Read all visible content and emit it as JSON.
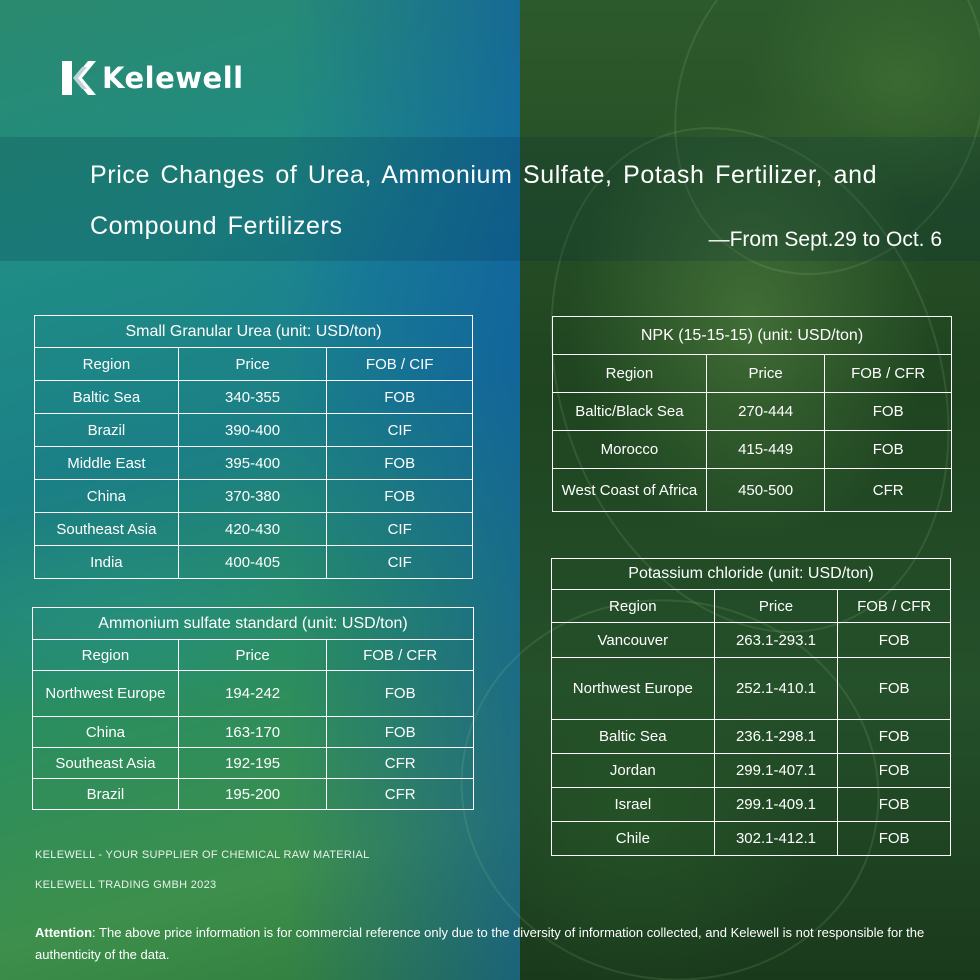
{
  "brand": {
    "name": "Kelewell"
  },
  "title": "Price Changes of Urea, Ammonium Sulfate, Potash Fertilizer, and Compound Fertilizers",
  "date_range": "—From Sept.29 to Oct. 6",
  "tables": {
    "urea": {
      "caption": "Small Granular Urea (unit: USD/ton)",
      "headers": [
        "Region",
        "Price",
        "FOB / CIF"
      ],
      "rows": [
        [
          "Baltic Sea",
          "340-355",
          "FOB"
        ],
        [
          "Brazil",
          "390-400",
          "CIF"
        ],
        [
          "Middle East",
          "395-400",
          "FOB"
        ],
        [
          "China",
          "370-380",
          "FOB"
        ],
        [
          "Southeast Asia",
          "420-430",
          "CIF"
        ],
        [
          "India",
          "400-405",
          "CIF"
        ]
      ]
    },
    "ammonium": {
      "caption": "Ammonium sulfate standard (unit: USD/ton)",
      "headers": [
        "Region",
        "Price",
        "FOB / CFR"
      ],
      "rows": [
        [
          "Northwest Europe",
          "194-242",
          "FOB"
        ],
        [
          "China",
          "163-170",
          "FOB"
        ],
        [
          "Southeast Asia",
          "192-195",
          "CFR"
        ],
        [
          "Brazil",
          "195-200",
          "CFR"
        ]
      ]
    },
    "npk": {
      "caption": "NPK (15-15-15) (unit: USD/ton)",
      "headers": [
        "Region",
        "Price",
        "FOB / CFR"
      ],
      "rows": [
        [
          "Baltic/Black Sea",
          "270-444",
          "FOB"
        ],
        [
          "Morocco",
          "415-449",
          "FOB"
        ],
        [
          "West Coast of Africa",
          "450-500",
          "CFR"
        ]
      ]
    },
    "kcl": {
      "caption": "Potassium chloride (unit: USD/ton)",
      "headers": [
        "Region",
        "Price",
        "FOB / CFR"
      ],
      "rows": [
        [
          "Vancouver",
          "263.1-293.1",
          "FOB"
        ],
        [
          "Northwest Europe",
          "252.1-410.1",
          "FOB"
        ],
        [
          "Baltic Sea",
          "236.1-298.1",
          "FOB"
        ],
        [
          "Jordan",
          "299.1-407.1",
          "FOB"
        ],
        [
          "Israel",
          "299.1-409.1",
          "FOB"
        ],
        [
          "Chile",
          "302.1-412.1",
          "FOB"
        ]
      ]
    }
  },
  "footer": {
    "line1": "KELEWELL -  YOUR SUPPLIER OF CHEMICAL RAW MATERIAL",
    "line2": "KELEWELL TRADING GMBH 2023"
  },
  "attention": {
    "label": "Attention",
    "text": ": The above price information is for commercial reference only due to the diversity of information collected, and Kelewell is not responsible for the authenticity of the data."
  }
}
